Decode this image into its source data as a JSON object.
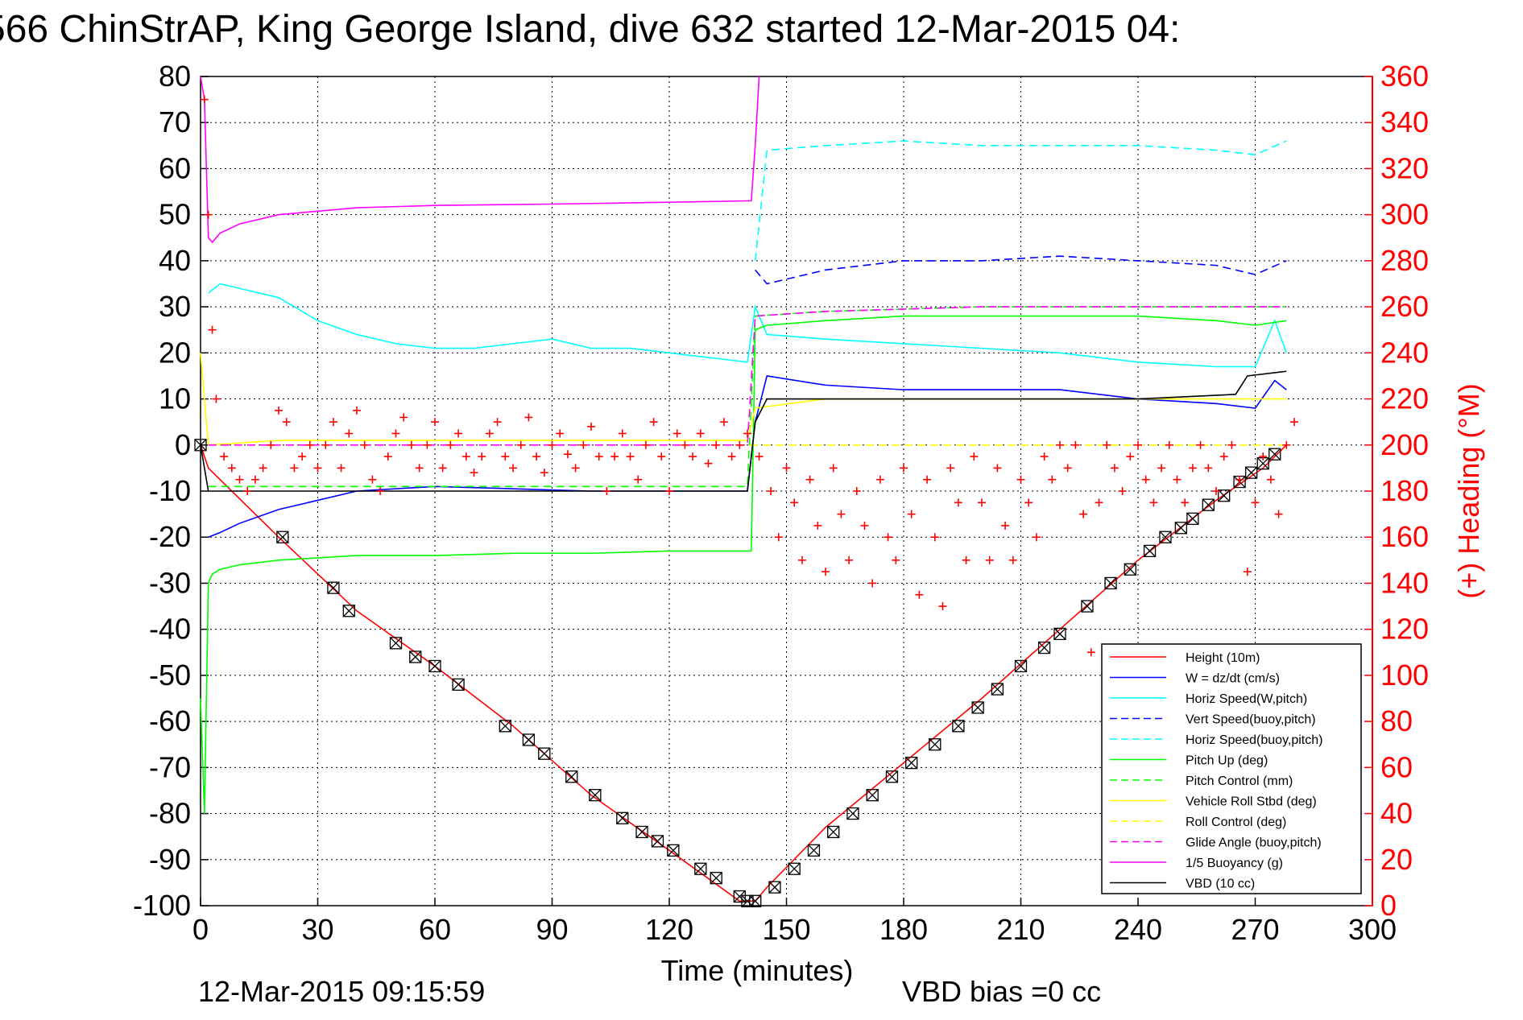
{
  "chart_data": {
    "type": "line",
    "title": "566 ChinStrAP, King George Island, dive 632 started 12-Mar-2015 04:",
    "xlabel": "Time (minutes)",
    "ylabel": "",
    "y2label": "(+) Heading (°M)",
    "xlim": [
      0,
      300
    ],
    "ylim": [
      -100,
      80
    ],
    "y2lim": [
      0,
      360
    ],
    "xticks": [
      "0",
      "30",
      "60",
      "90",
      "120",
      "150",
      "180",
      "210",
      "240",
      "270",
      "300"
    ],
    "yticks": [
      "80",
      "70",
      "60",
      "50",
      "40",
      "30",
      "20",
      "10",
      "0",
      "-10",
      "-20",
      "-30",
      "-40",
      "-50",
      "-60",
      "-70",
      "-80",
      "-90",
      "-100"
    ],
    "y2ticks": [
      "360",
      "340",
      "320",
      "300",
      "280",
      "260",
      "240",
      "220",
      "200",
      "180",
      "160",
      "140",
      "120",
      "100",
      "80",
      "60",
      "40",
      "20",
      "0"
    ],
    "grid": true,
    "legend_position": "bottom-right",
    "footer_left": "12-Mar-2015 09:15:59",
    "footer_right": "VBD bias =0 cc",
    "legend": [
      {
        "label": "Height (10m)",
        "color": "#ff0000",
        "dash": "solid"
      },
      {
        "label": "W = dz/dt (cm/s)",
        "color": "#0000ff",
        "dash": "solid"
      },
      {
        "label": "Horiz Speed(W,pitch)",
        "color": "#00ffff",
        "dash": "solid"
      },
      {
        "label": "Vert Speed(buoy,pitch)",
        "color": "#0000ff",
        "dash": "dashed"
      },
      {
        "label": "Horiz Speed(buoy,pitch)",
        "color": "#00ffff",
        "dash": "dashed"
      },
      {
        "label": "Pitch Up (deg)",
        "color": "#00ff00",
        "dash": "solid"
      },
      {
        "label": "Pitch Control (mm)",
        "color": "#00ff00",
        "dash": "dashed"
      },
      {
        "label": "Vehicle Roll Stbd (deg)",
        "color": "#ffff00",
        "dash": "solid"
      },
      {
        "label": "Roll Control (deg)",
        "color": "#ffff00",
        "dash": "dashed"
      },
      {
        "label": "Glide Angle (buoy,pitch)",
        "color": "#ff00ff",
        "dash": "dashed"
      },
      {
        "label": "1/5 Buoyancy (g)",
        "color": "#ff00ff",
        "dash": "solid"
      },
      {
        "label": "VBD (10 cc)",
        "color": "#000000",
        "dash": "solid"
      }
    ],
    "series": [
      {
        "name": "Height (10m)",
        "color": "#ff0000",
        "dash": "solid",
        "axis": "left",
        "x": [
          0,
          2,
          20,
          40,
          60,
          80,
          100,
          120,
          138,
          142,
          145,
          160,
          180,
          200,
          220,
          240,
          260,
          272,
          278
        ],
        "y": [
          0,
          -5,
          -20,
          -36,
          -48,
          -61,
          -76,
          -88,
          -99,
          -99,
          -96,
          -83,
          -69,
          -55,
          -40,
          -25,
          -12,
          -5,
          0
        ]
      },
      {
        "name": "1/5 Buoyancy (g)",
        "color": "#ff00ff",
        "dash": "solid",
        "axis": "left",
        "x": [
          0,
          1,
          2,
          3,
          5,
          10,
          20,
          40,
          60,
          90,
          120,
          140,
          141,
          142,
          143
        ],
        "y": [
          80,
          75,
          45,
          44,
          46,
          48,
          50,
          51.5,
          52,
          52.3,
          52.7,
          53,
          53,
          65,
          80
        ]
      },
      {
        "name": "W = dz/dt (cm/s)",
        "color": "#0000ff",
        "dash": "solid",
        "axis": "left",
        "x": [
          2,
          5,
          10,
          20,
          30,
          40,
          60,
          80,
          100,
          120,
          140,
          142,
          145,
          160,
          180,
          200,
          220,
          240,
          260,
          270,
          275,
          278
        ],
        "y": [
          -20,
          -19,
          -17,
          -14,
          -12,
          -10,
          -9,
          -9.5,
          -10,
          -10,
          -10,
          5,
          15,
          13,
          12,
          12,
          12,
          10,
          9,
          8,
          14,
          12
        ]
      },
      {
        "name": "Horiz Speed(W,pitch)",
        "color": "#00ffff",
        "dash": "solid",
        "axis": "left",
        "x": [
          2,
          5,
          10,
          20,
          30,
          40,
          50,
          60,
          70,
          80,
          90,
          100,
          110,
          120,
          130,
          140,
          142,
          145,
          160,
          180,
          200,
          220,
          240,
          260,
          270,
          275,
          278
        ],
        "y": [
          33,
          35,
          34,
          32,
          27,
          24,
          22,
          21,
          21,
          22,
          23,
          21,
          21,
          20,
          19,
          18,
          30,
          24,
          23,
          22,
          21,
          20,
          18,
          17,
          17,
          27,
          20
        ]
      },
      {
        "name": "Vert Speed(buoy,pitch)",
        "color": "#0000ff",
        "dash": "dashed",
        "axis": "left",
        "x": [
          142,
          145,
          160,
          180,
          200,
          220,
          240,
          260,
          270,
          278
        ],
        "y": [
          38,
          35,
          38,
          40,
          40,
          41,
          40,
          39,
          37,
          40
        ]
      },
      {
        "name": "Horiz Speed(buoy,pitch)",
        "color": "#00ffff",
        "dash": "dashed",
        "axis": "left",
        "x": [
          142,
          145,
          160,
          180,
          200,
          220,
          240,
          260,
          270,
          278
        ],
        "y": [
          40,
          64,
          65,
          66,
          65,
          65,
          65,
          64,
          63,
          66
        ]
      },
      {
        "name": "Pitch Up (deg)",
        "color": "#00ff00",
        "dash": "solid",
        "axis": "left",
        "x": [
          0,
          1,
          2,
          3,
          5,
          10,
          20,
          40,
          60,
          80,
          100,
          120,
          140,
          141,
          142,
          145,
          160,
          180,
          200,
          220,
          240,
          260,
          270,
          278
        ],
        "y": [
          -55,
          -80,
          -30,
          -28,
          -27,
          -26,
          -25,
          -24,
          -24,
          -23.5,
          -23.5,
          -23,
          -23,
          -23,
          25,
          26,
          27,
          28,
          28,
          28,
          28,
          27,
          26,
          27
        ]
      },
      {
        "name": "Pitch Control (mm)",
        "color": "#00ff00",
        "dash": "dashed",
        "axis": "left",
        "x": [
          2,
          20,
          60,
          100,
          140,
          142,
          160,
          200,
          240,
          278
        ],
        "y": [
          -9,
          -9,
          -9,
          -9,
          -9,
          28,
          29,
          30,
          30,
          30
        ]
      },
      {
        "name": "Vehicle Roll Stbd (deg)",
        "color": "#ffff00",
        "dash": "solid",
        "axis": "left",
        "x": [
          0,
          2,
          20,
          60,
          100,
          140,
          142,
          160,
          200,
          240,
          278
        ],
        "y": [
          20,
          0,
          1,
          1,
          1,
          1,
          8,
          10,
          10,
          10,
          10
        ]
      },
      {
        "name": "Roll Control (deg)",
        "color": "#ffff00",
        "dash": "dashed",
        "axis": "left",
        "x": [
          2,
          20,
          60,
          100,
          140,
          142,
          160,
          200,
          240,
          278
        ],
        "y": [
          0,
          0,
          0,
          0,
          0,
          0,
          0,
          0,
          0,
          0
        ]
      },
      {
        "name": "Glide Angle (buoy,pitch)",
        "color": "#ff00ff",
        "dash": "dashed",
        "axis": "left",
        "x": [
          2,
          20,
          60,
          100,
          140,
          142,
          160,
          200,
          240,
          278
        ],
        "y": [
          0,
          0,
          0,
          0,
          0,
          28,
          29,
          30,
          30,
          30
        ]
      },
      {
        "name": "VBD (10 cc)",
        "color": "#000000",
        "dash": "solid",
        "axis": "left",
        "x": [
          0,
          2,
          140,
          142,
          145,
          200,
          240,
          265,
          268,
          278
        ],
        "y": [
          0,
          -10,
          -10,
          5,
          10,
          10,
          10,
          11,
          15,
          16
        ]
      }
    ],
    "heading_scatter": {
      "name": "(+) Heading",
      "color": "#ff0000",
      "marker": "+",
      "axis": "right",
      "x": [
        1,
        2,
        3,
        4,
        6,
        8,
        10,
        12,
        14,
        16,
        18,
        20,
        22,
        24,
        26,
        28,
        30,
        32,
        34,
        36,
        38,
        40,
        42,
        44,
        46,
        48,
        50,
        52,
        54,
        56,
        58,
        60,
        62,
        64,
        66,
        68,
        70,
        72,
        74,
        76,
        78,
        80,
        82,
        84,
        86,
        88,
        90,
        92,
        94,
        96,
        98,
        100,
        102,
        104,
        106,
        108,
        110,
        112,
        114,
        116,
        118,
        120,
        122,
        124,
        126,
        128,
        130,
        132,
        134,
        136,
        138,
        140,
        143,
        146,
        148,
        150,
        152,
        154,
        156,
        158,
        160,
        162,
        164,
        166,
        168,
        170,
        172,
        174,
        176,
        178,
        180,
        182,
        184,
        186,
        188,
        190,
        192,
        194,
        196,
        198,
        200,
        202,
        204,
        206,
        208,
        210,
        212,
        214,
        216,
        218,
        220,
        222,
        224,
        226,
        228,
        230,
        232,
        234,
        236,
        238,
        240,
        242,
        244,
        246,
        248,
        250,
        252,
        254,
        256,
        258,
        260,
        262,
        264,
        266,
        268,
        270,
        272,
        274,
        276,
        278,
        280
      ],
      "y": [
        350,
        300,
        250,
        220,
        195,
        190,
        185,
        180,
        185,
        190,
        200,
        215,
        210,
        190,
        195,
        200,
        190,
        200,
        210,
        190,
        205,
        215,
        200,
        185,
        180,
        195,
        205,
        212,
        200,
        190,
        200,
        210,
        190,
        200,
        205,
        195,
        188,
        195,
        205,
        210,
        195,
        190,
        200,
        212,
        195,
        188,
        200,
        205,
        196,
        190,
        200,
        208,
        195,
        180,
        195,
        205,
        195,
        185,
        200,
        210,
        195,
        180,
        205,
        200,
        195,
        205,
        192,
        200,
        210,
        195,
        200,
        205,
        195,
        180,
        160,
        190,
        175,
        150,
        185,
        165,
        145,
        190,
        170,
        150,
        180,
        165,
        140,
        185,
        160,
        150,
        190,
        170,
        135,
        185,
        160,
        130,
        190,
        175,
        150,
        195,
        175,
        150,
        190,
        165,
        150,
        185,
        175,
        160,
        195,
        185,
        200,
        190,
        200,
        170,
        110,
        175,
        200,
        190,
        180,
        195,
        200,
        185,
        175,
        190,
        200,
        185,
        175,
        190,
        200,
        190,
        180,
        195,
        200,
        185,
        145,
        175,
        195,
        185,
        170,
        200,
        210
      ]
    },
    "dive_markers": {
      "name": "dive markers",
      "color": "#000000",
      "marker": "box-x",
      "x": [
        0,
        21,
        34,
        38,
        50,
        55,
        60,
        66,
        78,
        84,
        88,
        95,
        101,
        108,
        113,
        117,
        121,
        128,
        132,
        138,
        140,
        142,
        147,
        152,
        157,
        162,
        167,
        172,
        177,
        182,
        188,
        194,
        199,
        204,
        210,
        216,
        220,
        227,
        233,
        238,
        243,
        247,
        251,
        254,
        258,
        262,
        266,
        269,
        272,
        275
      ],
      "y": [
        0,
        -20,
        -31,
        -36,
        -43,
        -46,
        -48,
        -52,
        -61,
        -64,
        -67,
        -72,
        -76,
        -81,
        -84,
        -86,
        -88,
        -92,
        -94,
        -98,
        -99,
        -99,
        -96,
        -92,
        -88,
        -84,
        -80,
        -76,
        -72,
        -69,
        -65,
        -61,
        -57,
        -53,
        -48,
        -44,
        -41,
        -35,
        -30,
        -27,
        -23,
        -20,
        -18,
        -16,
        -13,
        -11,
        -8,
        -6,
        -4,
        -2
      ]
    }
  }
}
